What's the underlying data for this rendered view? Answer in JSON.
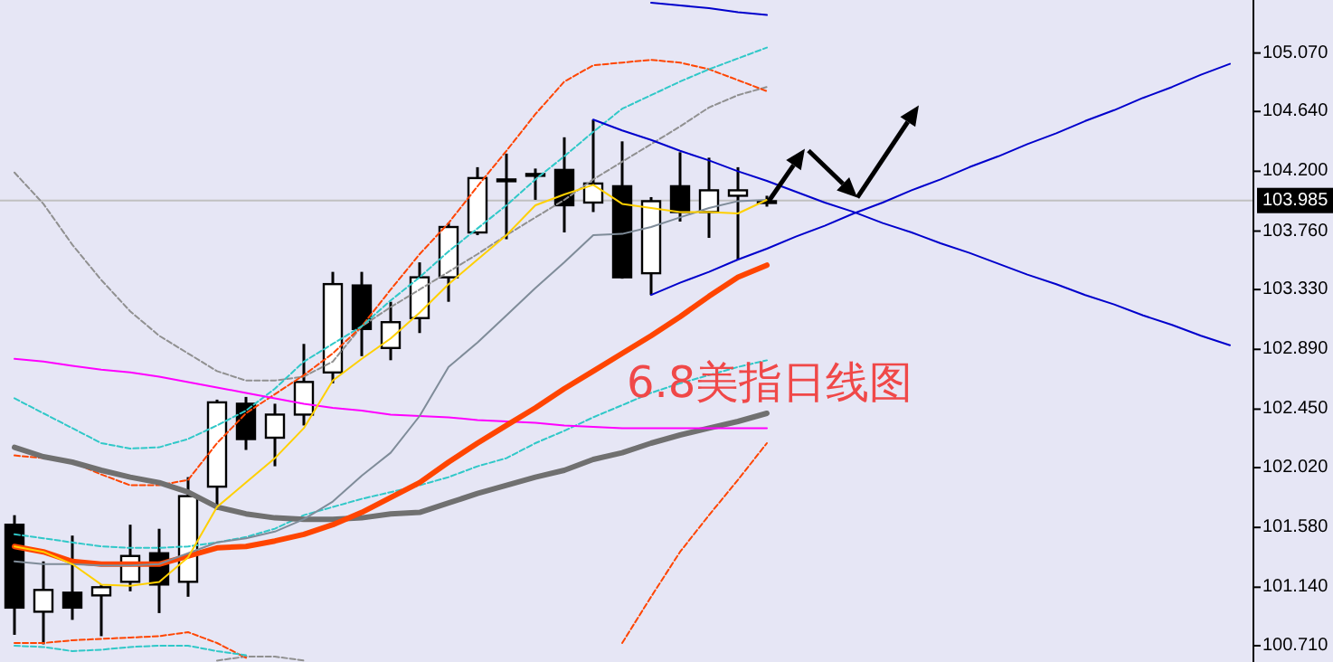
{
  "chart_data": {
    "type": "candlestick",
    "categories": [
      null,
      null,
      null,
      null,
      null,
      null,
      null,
      null,
      null,
      null,
      null,
      null,
      null,
      null,
      null,
      null,
      null,
      null,
      null,
      null,
      null,
      null,
      null,
      null,
      null,
      null,
      null,
      null,
      null,
      null,
      null,
      null,
      null,
      null,
      null,
      null,
      null,
      null,
      null,
      null,
      null,
      null,
      null
    ],
    "ohlc": [
      [
        101.6,
        101.67,
        100.79,
        100.99
      ],
      [
        100.96,
        101.33,
        100.72,
        101.12
      ],
      [
        101.1,
        101.52,
        100.9,
        100.99
      ],
      [
        101.08,
        101.16,
        100.78,
        101.14
      ],
      [
        101.18,
        101.6,
        101.11,
        101.37
      ],
      [
        101.39,
        101.57,
        100.95,
        101.16
      ],
      [
        101.18,
        101.95,
        101.07,
        101.81
      ],
      [
        101.88,
        102.52,
        101.71,
        102.5
      ],
      [
        102.49,
        102.54,
        102.15,
        102.23
      ],
      [
        102.24,
        102.49,
        102.03,
        102.41
      ],
      [
        102.41,
        102.93,
        102.33,
        102.65
      ],
      [
        102.72,
        103.46,
        102.64,
        103.37
      ],
      [
        103.36,
        103.46,
        102.84,
        103.04
      ],
      [
        102.9,
        103.24,
        102.81,
        103.09
      ],
      [
        103.12,
        103.53,
        103.01,
        103.42
      ],
      [
        103.42,
        103.82,
        103.24,
        103.79
      ],
      [
        103.75,
        104.23,
        103.73,
        104.15
      ],
      [
        104.14,
        104.33,
        103.7,
        104.14
      ],
      [
        104.18,
        104.22,
        103.99,
        104.18
      ],
      [
        104.21,
        104.45,
        103.75,
        103.95
      ],
      [
        103.97,
        104.58,
        103.9,
        104.11
      ],
      [
        104.09,
        104.42,
        103.41,
        103.42
      ],
      [
        103.45,
        104.01,
        103.29,
        103.98
      ],
      [
        104.09,
        104.34,
        103.83,
        103.9
      ],
      [
        103.9,
        104.3,
        103.71,
        104.06
      ],
      [
        104.02,
        104.23,
        103.55,
        104.06
      ],
      [
        103.98,
        104.02,
        103.94,
        103.98
      ],
      null,
      null,
      null,
      null,
      null,
      null,
      null,
      null,
      null,
      null,
      null,
      null,
      null,
      null,
      null,
      null
    ],
    "series": [
      {
        "type": "line",
        "color": "#909090",
        "line_style": "dashed",
        "values": [
          104.19,
          103.96,
          103.66,
          103.4,
          103.17,
          102.99,
          102.86,
          102.73,
          102.66,
          102.66,
          102.69,
          102.8,
          103.06,
          103.2,
          103.33,
          103.46,
          103.59,
          103.73,
          103.86,
          103.99,
          104.14,
          104.27,
          104.4,
          104.53,
          104.67,
          104.76,
          104.82,
          null,
          null,
          null,
          null,
          null,
          null,
          null,
          null,
          null,
          null,
          null,
          null,
          null,
          null,
          null,
          null
        ]
      },
      {
        "type": "line",
        "color": "#909090",
        "line_style": "dashed",
        "values": [
          null,
          null,
          null,
          null,
          null,
          null,
          null,
          100.6,
          100.63,
          100.63,
          100.6,
          null,
          null,
          null,
          null,
          null,
          null,
          null,
          null,
          null,
          null,
          null,
          null,
          null,
          null,
          null,
          null,
          null,
          null,
          null,
          null,
          null,
          null,
          null,
          null,
          null,
          null,
          null,
          null,
          null,
          null,
          null,
          null
        ]
      },
      {
        "type": "line",
        "color": "#ff4500",
        "line_style": "dashed",
        "values": [
          102.11,
          102.09,
          102.06,
          101.97,
          101.89,
          101.89,
          101.93,
          102.2,
          102.42,
          102.56,
          102.7,
          102.86,
          103.06,
          103.33,
          103.59,
          103.82,
          104.09,
          104.35,
          104.62,
          104.86,
          104.98,
          105.0,
          105.02,
          105.0,
          104.95,
          104.87,
          104.79,
          null,
          null,
          null,
          null,
          null,
          null,
          null,
          null,
          null,
          null,
          null,
          null,
          null,
          null,
          null,
          null
        ]
      },
      {
        "type": "line",
        "color": "#ff4500",
        "line_style": "dashed",
        "values": [
          100.73,
          100.73,
          100.75,
          100.76,
          100.77,
          100.78,
          100.81,
          100.73,
          100.62,
          null,
          null,
          null,
          null,
          null,
          null,
          null,
          null,
          null,
          null,
          null,
          null,
          100.73,
          101.07,
          101.4,
          101.67,
          101.93,
          102.2,
          null,
          null,
          null,
          null,
          null,
          null,
          null,
          null,
          null,
          null,
          null,
          null,
          null,
          null,
          null,
          null
        ]
      },
      {
        "type": "line",
        "color": "#30c8c8",
        "line_style": "dashed",
        "values": [
          102.53,
          102.42,
          102.31,
          102.2,
          102.16,
          102.17,
          102.23,
          102.33,
          102.44,
          102.6,
          102.8,
          102.93,
          103.06,
          103.25,
          103.42,
          103.61,
          103.78,
          103.95,
          104.14,
          104.31,
          104.49,
          104.66,
          104.76,
          104.86,
          104.95,
          105.03,
          105.11,
          null,
          null,
          null,
          null,
          null,
          null,
          null,
          null,
          null,
          null,
          null,
          null,
          null,
          null,
          null,
          null
        ]
      },
      {
        "type": "line",
        "color": "#30c8c8",
        "line_style": "dashed",
        "values": [
          101.53,
          101.5,
          101.47,
          101.44,
          101.43,
          101.43,
          101.44,
          101.47,
          101.51,
          101.57,
          101.67,
          101.73,
          101.79,
          101.84,
          101.89,
          101.95,
          102.03,
          102.09,
          102.2,
          102.29,
          102.39,
          102.48,
          102.57,
          102.64,
          102.7,
          102.76,
          102.81,
          null,
          null,
          null,
          null,
          null,
          null,
          null,
          null,
          null,
          null,
          null,
          null,
          null,
          null,
          null,
          null
        ]
      },
      {
        "type": "line",
        "color": "#30c8c8",
        "line_style": "dashed",
        "values": [
          100.71,
          100.7,
          100.67,
          100.68,
          100.7,
          100.71,
          100.71,
          100.67,
          100.64,
          null,
          null,
          null,
          null,
          null,
          null,
          null,
          null,
          null,
          null,
          null,
          null,
          null,
          null,
          null,
          null,
          null,
          null,
          null,
          null,
          null,
          null,
          null,
          null,
          null,
          null,
          null,
          null,
          null,
          null,
          null,
          null,
          null,
          null
        ]
      },
      {
        "type": "line",
        "color": "#707070",
        "line_style": "solid",
        "values": [
          102.17,
          102.1,
          102.06,
          102.0,
          101.95,
          101.91,
          101.84,
          101.73,
          101.68,
          101.65,
          101.64,
          101.64,
          101.65,
          101.68,
          101.69,
          101.76,
          101.83,
          101.89,
          101.95,
          102.0,
          102.08,
          102.13,
          102.2,
          102.26,
          102.31,
          102.36,
          102.42,
          null,
          null,
          null,
          null,
          null,
          null,
          null,
          null,
          null,
          null,
          null,
          null,
          null,
          null,
          null,
          null
        ]
      },
      {
        "type": "line",
        "color": "#ff00ff",
        "line_style": "solid",
        "values": [
          102.82,
          102.8,
          102.77,
          102.74,
          102.72,
          102.69,
          102.65,
          102.61,
          102.57,
          102.53,
          102.49,
          102.46,
          102.44,
          102.41,
          102.4,
          102.39,
          102.37,
          102.36,
          102.35,
          102.33,
          102.32,
          102.31,
          102.31,
          102.31,
          102.31,
          102.31,
          102.31,
          null,
          null,
          null,
          null,
          null,
          null,
          null,
          null,
          null,
          null,
          null,
          null,
          null,
          null,
          null,
          null
        ]
      },
      {
        "type": "line",
        "color": "#ff4500",
        "line_style": "solid",
        "values": [
          101.44,
          101.4,
          101.33,
          101.31,
          101.31,
          101.31,
          101.37,
          101.43,
          101.44,
          101.48,
          101.53,
          101.6,
          101.69,
          101.8,
          101.91,
          102.06,
          102.2,
          102.33,
          102.46,
          102.6,
          102.73,
          102.86,
          102.99,
          103.13,
          103.28,
          103.42,
          103.51,
          null,
          null,
          null,
          null,
          null,
          null,
          null,
          null,
          null,
          null,
          null,
          null,
          null,
          null,
          null,
          null
        ]
      },
      {
        "type": "line",
        "color": "#7f8c99",
        "line_style": "solid",
        "values": [
          101.33,
          101.31,
          101.31,
          101.3,
          101.3,
          101.31,
          101.39,
          101.47,
          101.5,
          101.55,
          101.64,
          101.77,
          101.96,
          102.13,
          102.4,
          102.76,
          102.94,
          103.14,
          103.34,
          103.53,
          103.73,
          103.74,
          103.79,
          103.86,
          103.93,
          103.98,
          103.99,
          null,
          null,
          null,
          null,
          null,
          null,
          null,
          null,
          null,
          null,
          null,
          null,
          null,
          null,
          null,
          null
        ]
      },
      {
        "type": "line",
        "color": "#ffd000",
        "line_style": "solid",
        "values": [
          101.44,
          101.4,
          101.31,
          101.16,
          101.15,
          101.18,
          101.36,
          101.73,
          101.91,
          102.09,
          102.31,
          102.66,
          102.82,
          102.97,
          103.16,
          103.37,
          103.55,
          103.73,
          103.95,
          104.03,
          104.1,
          103.96,
          103.93,
          103.9,
          103.9,
          103.89,
          103.99,
          null,
          null,
          null,
          null,
          null,
          null,
          null,
          null,
          null,
          null,
          null,
          null,
          null,
          null,
          null,
          null
        ]
      },
      {
        "type": "line",
        "color": "#0000cc",
        "line_style": "solid",
        "values": [
          null,
          null,
          null,
          null,
          null,
          null,
          null,
          null,
          null,
          null,
          null,
          null,
          null,
          null,
          null,
          null,
          null,
          null,
          null,
          null,
          104.58,
          104.5,
          104.43,
          104.35,
          104.28,
          104.2,
          104.13,
          104.05,
          103.97,
          103.9,
          103.82,
          103.75,
          103.67,
          103.6,
          103.52,
          103.44,
          103.37,
          103.29,
          103.22,
          103.14,
          103.07,
          102.99,
          102.92
        ]
      },
      {
        "type": "line",
        "color": "#0000cc",
        "line_style": "solid",
        "values": [
          null,
          null,
          null,
          null,
          null,
          null,
          null,
          null,
          null,
          null,
          null,
          null,
          null,
          null,
          null,
          null,
          null,
          null,
          null,
          null,
          null,
          null,
          103.29,
          103.38,
          103.46,
          103.55,
          103.63,
          103.72,
          103.8,
          103.89,
          103.97,
          104.06,
          104.14,
          104.23,
          104.31,
          104.4,
          104.48,
          104.57,
          104.65,
          104.74,
          104.82,
          104.91,
          104.99
        ]
      },
      {
        "type": "line",
        "color": "#0000cc",
        "line_style": "solid",
        "values": [
          null,
          null,
          null,
          null,
          null,
          null,
          null,
          null,
          null,
          null,
          null,
          null,
          null,
          null,
          null,
          null,
          null,
          null,
          null,
          null,
          null,
          null,
          105.44,
          105.42,
          105.4,
          105.37,
          105.35,
          null,
          null,
          null,
          null,
          null,
          null,
          null,
          null,
          null,
          null,
          null,
          null,
          null,
          null,
          null,
          null
        ]
      }
    ],
    "ylim": [
      100.59,
      105.46
    ],
    "yticks": [
      {
        "value": 105.07,
        "label": "105.070"
      },
      {
        "value": 104.64,
        "label": "104.640"
      },
      {
        "value": 104.2,
        "label": "104.200"
      },
      {
        "value": 103.76,
        "label": "103.760"
      },
      {
        "value": 103.33,
        "label": "103.330"
      },
      {
        "value": 102.89,
        "label": "102.890"
      },
      {
        "value": 102.45,
        "label": "102.450"
      },
      {
        "value": 102.02,
        "label": "102.020"
      },
      {
        "value": 101.58,
        "label": "101.580"
      },
      {
        "value": 101.14,
        "label": "101.140"
      },
      {
        "value": 100.71,
        "label": "100.710"
      }
    ],
    "ref_lines": [
      {
        "axis": "y",
        "value": 103.985,
        "label": "103.985",
        "color": "#c0c0c0"
      }
    ],
    "annotations": [
      "6.8美指日线图"
    ],
    "tick_labels": "y"
  }
}
